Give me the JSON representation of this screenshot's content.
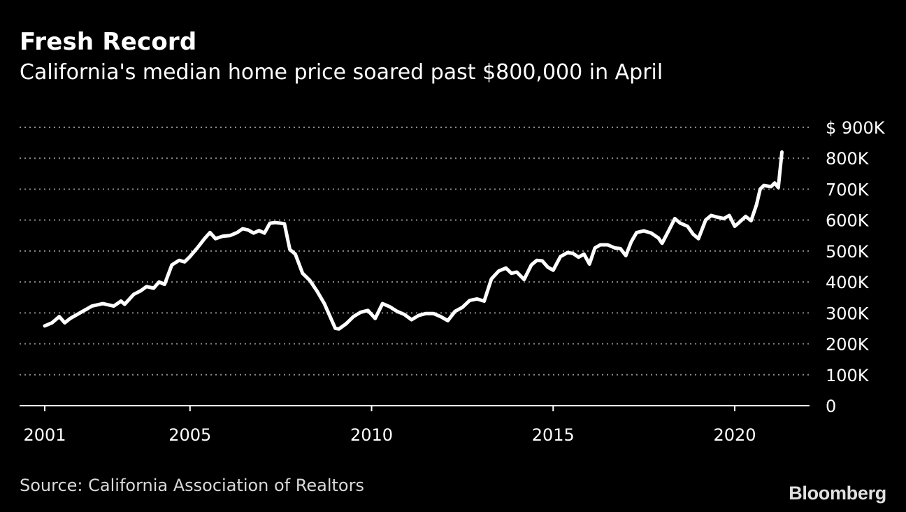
{
  "header": {
    "title": "Fresh Record",
    "subtitle": "California's median home price soared past $800,000 in April"
  },
  "footer": {
    "source": "Source: California Association of Realtors",
    "brand": "Bloomberg"
  },
  "colors": {
    "background": "#000000",
    "line": "#ffffff",
    "grid": "#8c8c8c",
    "text": "#ffffff"
  },
  "chart_data": {
    "type": "line",
    "title": "Fresh Record",
    "subtitle": "California's median home price soared past $800,000 in April",
    "xlabel": "",
    "ylabel": "",
    "y_axis_position": "right",
    "grid": "horizontal dotted",
    "legend": "none",
    "xlim": [
      2001,
      2022
    ],
    "ylim": [
      0,
      900
    ],
    "y_unit": "thousands of US dollars",
    "x_ticks": [
      {
        "value": 2001,
        "label": "2001"
      },
      {
        "value": 2005,
        "label": "2005"
      },
      {
        "value": 2010,
        "label": "2010"
      },
      {
        "value": 2015,
        "label": "2015"
      },
      {
        "value": 2020,
        "label": "2020"
      }
    ],
    "y_ticks": [
      {
        "value": 0,
        "label": "0"
      },
      {
        "value": 100,
        "label": "100K"
      },
      {
        "value": 200,
        "label": "200K"
      },
      {
        "value": 300,
        "label": "300K"
      },
      {
        "value": 400,
        "label": "400K"
      },
      {
        "value": 500,
        "label": "500K"
      },
      {
        "value": 600,
        "label": "600K"
      },
      {
        "value": 700,
        "label": "700K"
      },
      {
        "value": 800,
        "label": "800K"
      },
      {
        "value": 900,
        "label": "$ 900K"
      }
    ],
    "series": [
      {
        "x": [
          2001.0,
          2001.2,
          2001.4,
          2001.55,
          2001.7,
          2002.0,
          2002.3,
          2002.6,
          2002.9,
          2003.1,
          2003.2,
          2003.45,
          2003.65,
          2003.8,
          2004.0,
          2004.15,
          2004.3,
          2004.5,
          2004.7,
          2004.85,
          2005.0,
          2005.2,
          2005.4,
          2005.55,
          2005.7,
          2005.9,
          2006.1,
          2006.3,
          2006.45,
          2006.6,
          2006.75,
          2006.9,
          2007.05,
          2007.2,
          2007.35,
          2007.5,
          2007.6,
          2007.75,
          2007.9,
          2008.1,
          2008.3,
          2008.5,
          2008.7,
          2008.85,
          2009.0,
          2009.1,
          2009.3,
          2009.5,
          2009.7,
          2009.9,
          2010.1,
          2010.3,
          2010.5,
          2010.7,
          2010.9,
          2011.1,
          2011.3,
          2011.5,
          2011.7,
          2011.9,
          2012.1,
          2012.3,
          2012.5,
          2012.7,
          2012.9,
          2013.1,
          2013.3,
          2013.5,
          2013.7,
          2013.85,
          2014.0,
          2014.2,
          2014.4,
          2014.55,
          2014.7,
          2014.85,
          2015.0,
          2015.2,
          2015.4,
          2015.55,
          2015.7,
          2015.85,
          2016.0,
          2016.15,
          2016.3,
          2016.5,
          2016.7,
          2016.85,
          2017.0,
          2017.15,
          2017.3,
          2017.5,
          2017.7,
          2017.9,
          2018.0,
          2018.2,
          2018.35,
          2018.5,
          2018.7,
          2018.85,
          2019.0,
          2019.2,
          2019.35,
          2019.5,
          2019.7,
          2019.85,
          2020.0,
          2020.1,
          2020.3,
          2020.45,
          2020.6,
          2020.7,
          2020.8,
          2021.0,
          2021.1,
          2021.2,
          2021.3
        ],
        "y": [
          258,
          268,
          288,
          268,
          282,
          302,
          322,
          330,
          322,
          338,
          328,
          360,
          372,
          385,
          380,
          400,
          392,
          455,
          470,
          465,
          482,
          510,
          540,
          560,
          540,
          548,
          550,
          560,
          572,
          568,
          558,
          566,
          558,
          590,
          592,
          590,
          588,
          505,
          490,
          428,
          405,
          370,
          330,
          290,
          250,
          248,
          265,
          288,
          302,
          308,
          282,
          330,
          320,
          305,
          295,
          278,
          292,
          298,
          298,
          288,
          275,
          305,
          318,
          340,
          345,
          338,
          410,
          435,
          445,
          428,
          432,
          408,
          455,
          470,
          468,
          448,
          438,
          482,
          495,
          492,
          480,
          490,
          458,
          510,
          520,
          520,
          510,
          508,
          485,
          530,
          560,
          565,
          558,
          542,
          525,
          570,
          605,
          590,
          580,
          555,
          540,
          600,
          615,
          610,
          605,
          615,
          580,
          590,
          612,
          598,
          650,
          700,
          712,
          708,
          720,
          705,
          820
        ],
        "name": ""
      }
    ]
  }
}
